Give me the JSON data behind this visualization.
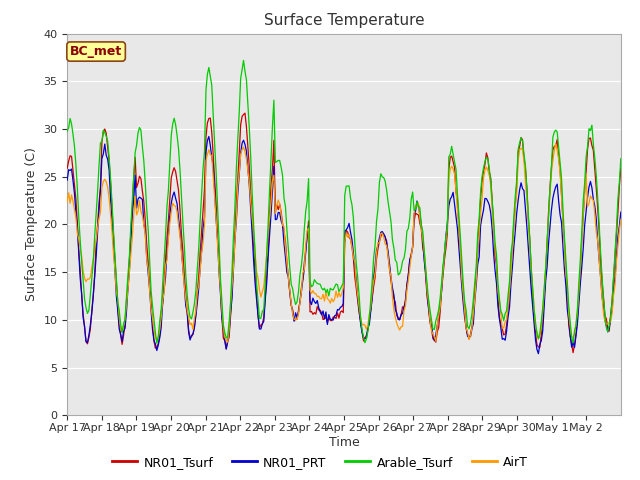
{
  "title": "Surface Temperature",
  "ylabel": "Surface Temperature (C)",
  "xlabel": "Time",
  "ylim": [
    0,
    40
  ],
  "yticks": [
    0,
    5,
    10,
    15,
    20,
    25,
    30,
    35,
    40
  ],
  "x_labels": [
    "Apr 17",
    "Apr 18",
    "Apr 19",
    "Apr 20",
    "Apr 21",
    "Apr 22",
    "Apr 23",
    "Apr 24",
    "Apr 25",
    "Apr 26",
    "Apr 27",
    "Apr 28",
    "Apr 29",
    "Apr 30",
    "May 1",
    "May 2"
  ],
  "annotation": "BC_met",
  "series_colors": [
    "#cc0000",
    "#0000cc",
    "#00cc00",
    "#ff9900"
  ],
  "series_names": [
    "NR01_Tsurf",
    "NR01_PRT",
    "Arable_Tsurf",
    "AirT"
  ],
  "background_color": "#e8e8e8",
  "title_fontsize": 11,
  "axis_label_fontsize": 9,
  "tick_fontsize": 8,
  "legend_fontsize": 9,
  "annotation_fontsize": 9
}
